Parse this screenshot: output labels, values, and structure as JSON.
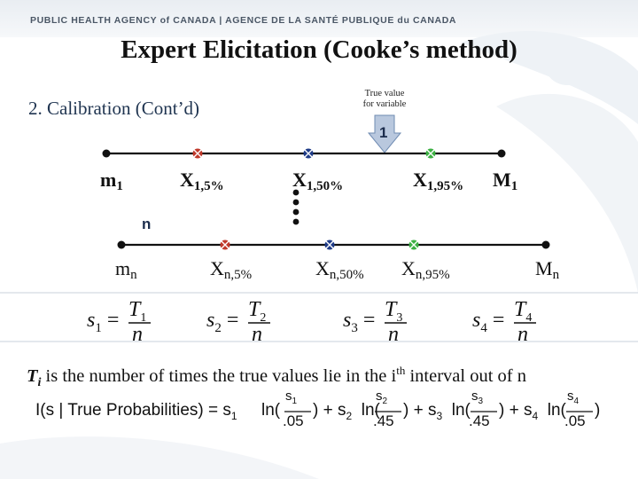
{
  "banner": {
    "text": "PUBLIC HEALTH AGENCY of CANADA | AGENCE DE LA SANTÉ PUBLIQUE du CANADA"
  },
  "title": "Expert Elicitation (Cooke’s method)",
  "subtitle": "2. Calibration (Cont’d)",
  "true_value_label": {
    "line1": "True value",
    "line2": "for variable"
  },
  "markers": {
    "first": "1",
    "nth": "n"
  },
  "row1": {
    "m": "m",
    "m_sub": "1",
    "x5": "X",
    "x5_sub": "1,5%",
    "x50": "X",
    "x50_sub": "1,50%",
    "x95": "X",
    "x95_sub": "1,95%",
    "M": "M",
    "M_sub": "1"
  },
  "rown": {
    "m": "m",
    "m_sub": "n",
    "x5": "X",
    "x5_sub": "n,5%",
    "x50": "X",
    "x50_sub": "n,50%",
    "x95": "X",
    "x95_sub": "n,95%",
    "M": "M",
    "M_sub": "n"
  },
  "colors": {
    "red": "#c0392b",
    "blue": "#1f3c88",
    "green": "#3cb043",
    "arrow": "#b9c8de"
  },
  "score_formulas": [
    {
      "lhs": "s",
      "sub": "1",
      "num": "T",
      "num_sub": "1",
      "den": "n"
    },
    {
      "lhs": "s",
      "sub": "2",
      "num": "T",
      "num_sub": "2",
      "den": "n"
    },
    {
      "lhs": "s",
      "sub": "3",
      "num": "T",
      "num_sub": "3",
      "den": "n"
    },
    {
      "lhs": "s",
      "sub": "4",
      "num": "T",
      "num_sub": "4",
      "den": "n"
    }
  ],
  "ti_sentence": {
    "ti": "T",
    "ti_sub": "i",
    "text_a": " is the number of times the true values lie in the i",
    "sup": "th",
    "text_b": " interval out of n"
  },
  "info_formula": {
    "lhs": "I(s | True Probabilities) = s",
    "terms": [
      {
        "num": "s",
        "num_sub": "1",
        "den": ".05"
      },
      {
        "num": "s",
        "num_sub": "2",
        "den": ".45"
      },
      {
        "num": "s",
        "num_sub": "3",
        "den": ".45"
      },
      {
        "num": "s",
        "num_sub": "4",
        "den": ".05"
      }
    ]
  }
}
